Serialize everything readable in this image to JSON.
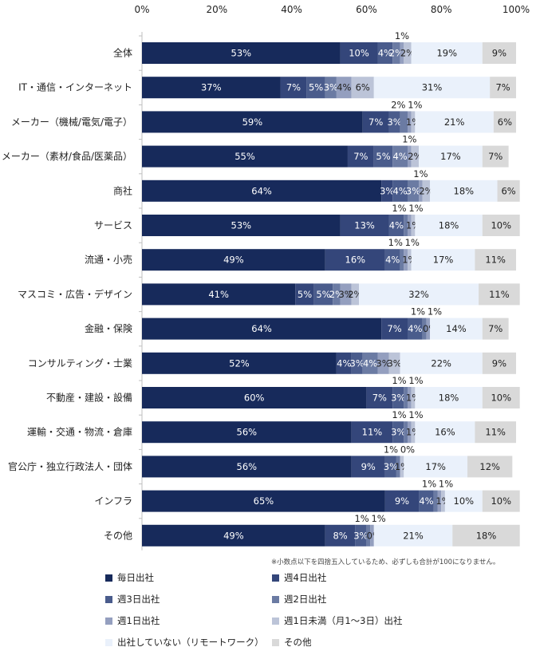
{
  "chart_data": {
    "type": "bar",
    "orientation": "horizontal",
    "stacked": true,
    "x_ticks": [
      "0%",
      "20%",
      "40%",
      "60%",
      "80%",
      "100%"
    ],
    "xlim": [
      0,
      100
    ],
    "categories": [
      "全体",
      "IT・通信・インターネット",
      "メーカー（機械/電気/電子）",
      "メーカー（素材/食品/医薬品）",
      "商社",
      "サービス",
      "流通・小売",
      "マスコミ・広告・デザイン",
      "金融・保険",
      "コンサルティング・士業",
      "不動産・建設・設備",
      "運輸・交通・物流・倉庫",
      "官公庁・独立行政法人・団体",
      "インフラ",
      "その他"
    ],
    "series": [
      {
        "name": "毎日出社",
        "color": "#172a5b",
        "values": [
          53,
          37,
          59,
          55,
          64,
          53,
          49,
          41,
          64,
          52,
          60,
          56,
          56,
          65,
          49
        ]
      },
      {
        "name": "週4日出社",
        "color": "#34467a",
        "values": [
          10,
          7,
          7,
          7,
          3,
          13,
          16,
          5,
          7,
          4,
          7,
          11,
          9,
          9,
          8
        ]
      },
      {
        "name": "週3日出社",
        "color": "#4a5c8c",
        "values": [
          4,
          5,
          3,
          5,
          4,
          4,
          4,
          5,
          4,
          3,
          3,
          3,
          3,
          4,
          3
        ]
      },
      {
        "name": "週2日出社",
        "color": "#6b7ba3",
        "values": [
          2,
          3,
          2,
          4,
          3,
          1,
          1,
          2,
          1,
          4,
          1,
          1,
          1,
          1,
          1
        ]
      },
      {
        "name": "週1日出社",
        "color": "#949fbf",
        "values": [
          1,
          4,
          1,
          1,
          1,
          1,
          1,
          3,
          1,
          3,
          1,
          1,
          0,
          1,
          1
        ]
      },
      {
        "name": "週1日未満（月1～3日）出社",
        "color": "#bcc4d8",
        "values": [
          2,
          6,
          1,
          2,
          2,
          1,
          1,
          2,
          0,
          3,
          1,
          1,
          1,
          1,
          0
        ]
      },
      {
        "name": "出社していない（リモートワーク）",
        "color": "#eaf1fb",
        "values": [
          19,
          31,
          21,
          17,
          18,
          18,
          17,
          32,
          14,
          22,
          18,
          16,
          17,
          10,
          21
        ]
      },
      {
        "name": "その他",
        "color": "#d9d9d9",
        "values": [
          9,
          7,
          6,
          7,
          6,
          10,
          11,
          11,
          7,
          9,
          10,
          11,
          12,
          10,
          18
        ]
      }
    ],
    "label_hidden": [
      [
        false,
        false,
        false,
        false,
        true,
        false,
        false,
        false
      ],
      [
        false,
        false,
        false,
        false,
        false,
        false,
        false,
        false
      ],
      [
        false,
        false,
        false,
        true,
        true,
        false,
        false,
        false
      ],
      [
        false,
        false,
        false,
        false,
        true,
        false,
        false,
        false
      ],
      [
        false,
        false,
        false,
        false,
        true,
        false,
        false,
        false
      ],
      [
        false,
        false,
        false,
        true,
        true,
        false,
        false,
        false
      ],
      [
        false,
        false,
        false,
        true,
        true,
        false,
        false,
        false
      ],
      [
        false,
        false,
        false,
        false,
        false,
        false,
        false,
        false
      ],
      [
        false,
        false,
        false,
        true,
        true,
        false,
        false,
        false
      ],
      [
        false,
        false,
        false,
        false,
        false,
        false,
        false,
        false
      ],
      [
        false,
        false,
        false,
        true,
        true,
        false,
        false,
        false
      ],
      [
        false,
        false,
        false,
        true,
        true,
        false,
        false,
        false
      ],
      [
        false,
        false,
        false,
        true,
        true,
        false,
        false,
        false
      ],
      [
        false,
        false,
        false,
        true,
        true,
        false,
        false,
        false
      ],
      [
        false,
        false,
        false,
        true,
        true,
        false,
        false,
        false
      ]
    ]
  },
  "footnote": "※小数点以下を四捨五入しているため、必ずしも合計が100になりません。"
}
